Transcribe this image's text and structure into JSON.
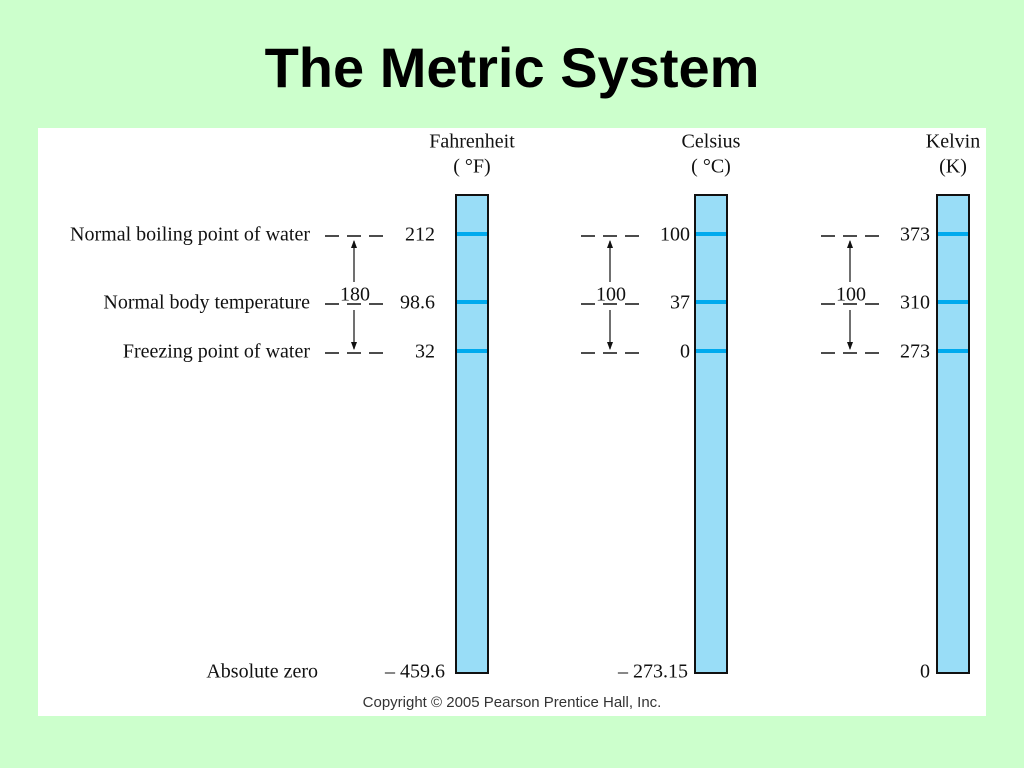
{
  "title": "The Metric System",
  "copyright": "Copyright © 2005 Pearson Prentice Hall, Inc.",
  "reference_points": [
    "Normal boiling point of water",
    "Normal body temperature",
    "Freezing point of water",
    "Absolute zero"
  ],
  "scales": [
    {
      "name": "Fahrenheit",
      "unit": "( °F)",
      "values": [
        "212",
        "98.6",
        "32",
        "– 459.6"
      ],
      "difference": "180"
    },
    {
      "name": "Celsius",
      "unit": "( °C)",
      "values": [
        "100",
        "37",
        "0",
        "– 273.15"
      ],
      "difference": "100"
    },
    {
      "name": "Kelvin",
      "unit": "(K)",
      "values": [
        "373",
        "310",
        "273",
        "0"
      ],
      "difference": "100"
    }
  ]
}
